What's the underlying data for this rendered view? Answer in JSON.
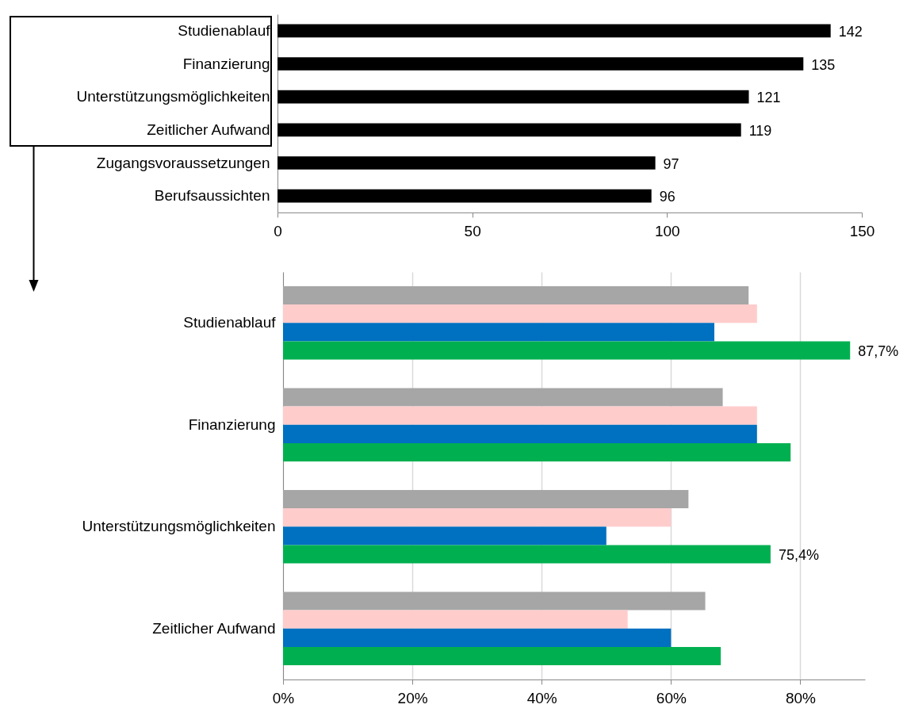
{
  "chart_data": [
    {
      "type": "bar",
      "orientation": "horizontal",
      "categories": [
        "Studienablauf",
        "Finanzierung",
        "Unterstützungsmöglichkeiten",
        "Zeitlicher Aufwand",
        "Zugangsvoraussetzungen",
        "Berufsaussichten"
      ],
      "values": [
        142,
        135,
        121,
        119,
        97,
        96
      ],
      "color": "#000000",
      "xlim": [
        0,
        150
      ],
      "xticks": [
        0,
        50,
        100,
        150
      ],
      "data_labels": true,
      "grid": false
    },
    {
      "type": "bar",
      "orientation": "horizontal",
      "categories": [
        "Studienablauf",
        "Finanzierung",
        "Unterstützungsmöglichkeiten",
        "Zeitlicher Aufwand"
      ],
      "series": [
        {
          "color": "#a6a6a6",
          "values": [
            72,
            68,
            62.7,
            65.3
          ]
        },
        {
          "color": "#ffcccc",
          "values": [
            73.3,
            73.3,
            60,
            53.3
          ]
        },
        {
          "color": "#0070c0",
          "values": [
            66.7,
            73.3,
            50,
            60
          ]
        },
        {
          "color": "#00b050",
          "values": [
            87.7,
            78.5,
            75.4,
            67.7
          ],
          "value_labels": [
            "87,7%",
            null,
            "75,4%",
            null
          ]
        }
      ],
      "xlim": [
        0,
        90
      ],
      "xticks": [
        {
          "value": 0,
          "label": "0%"
        },
        {
          "value": 20,
          "label": "20%"
        },
        {
          "value": 40,
          "label": "40%"
        },
        {
          "value": 60,
          "label": "60%"
        },
        {
          "value": 80,
          "label": "80%"
        }
      ],
      "grid": "x"
    }
  ]
}
